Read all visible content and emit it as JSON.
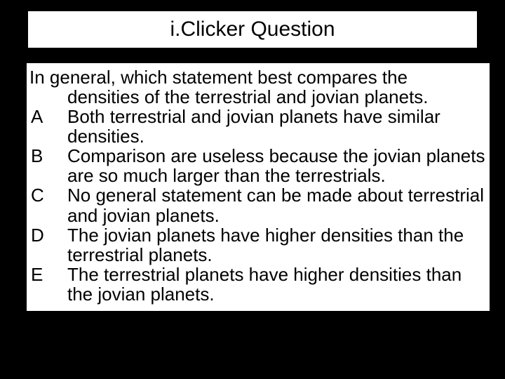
{
  "slide": {
    "background_color": "#000000",
    "title_box": {
      "background_color": "#ffffff",
      "border_color": "#000000",
      "text": "i.Clicker Question",
      "fontsize": 30,
      "text_color": "#000000"
    },
    "content_box": {
      "background_color": "#ffffff",
      "text_color": "#000000",
      "fontsize": 26,
      "question_line1": "In general, which statement best compares the",
      "question_line2": "densities of the terrestrial and jovian planets.",
      "options": [
        {
          "letter": "A",
          "text": "Both terrestrial and jovian planets have similar densities."
        },
        {
          "letter": "B",
          "text": "Comparison are useless because the jovian planets are so much larger than the terrestrials."
        },
        {
          "letter": "C",
          "text": "No general statement can be made about terrestrial and jovian planets."
        },
        {
          "letter": "D",
          "text": "The jovian planets have higher densities than the terrestrial planets."
        },
        {
          "letter": "E",
          "text": "The terrestrial planets have higher densities than the jovian planets."
        }
      ]
    }
  }
}
